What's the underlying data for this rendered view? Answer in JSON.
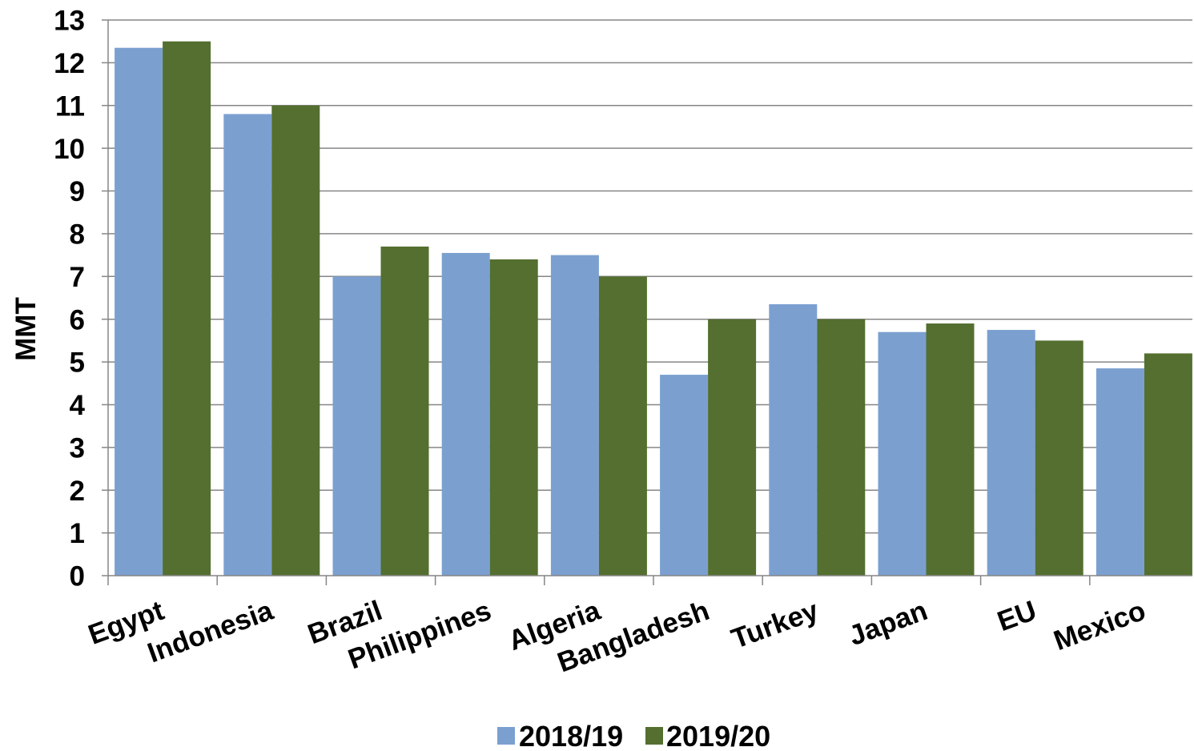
{
  "chart_data": {
    "type": "bar",
    "categories": [
      "Egypt",
      "Indonesia",
      "Brazil",
      "Philippines",
      "Algeria",
      "Bangladesh",
      "Turkey",
      "Japan",
      "EU",
      "Mexico"
    ],
    "series": [
      {
        "name": "2018/19",
        "color": "#7ba0d0",
        "values": [
          12.35,
          10.8,
          7.0,
          7.55,
          7.5,
          4.7,
          6.35,
          5.7,
          5.75,
          4.85
        ]
      },
      {
        "name": "2019/20",
        "color": "#546f2f",
        "values": [
          12.5,
          11.0,
          7.7,
          7.4,
          7.0,
          6.0,
          6.0,
          5.9,
          5.5,
          5.2
        ]
      }
    ],
    "ylabel": "MMT",
    "ylim": [
      0,
      13
    ],
    "yticks": [
      0,
      1,
      2,
      3,
      4,
      5,
      6,
      7,
      8,
      9,
      10,
      11,
      12,
      13
    ],
    "grid": true,
    "legend": "bottom"
  }
}
